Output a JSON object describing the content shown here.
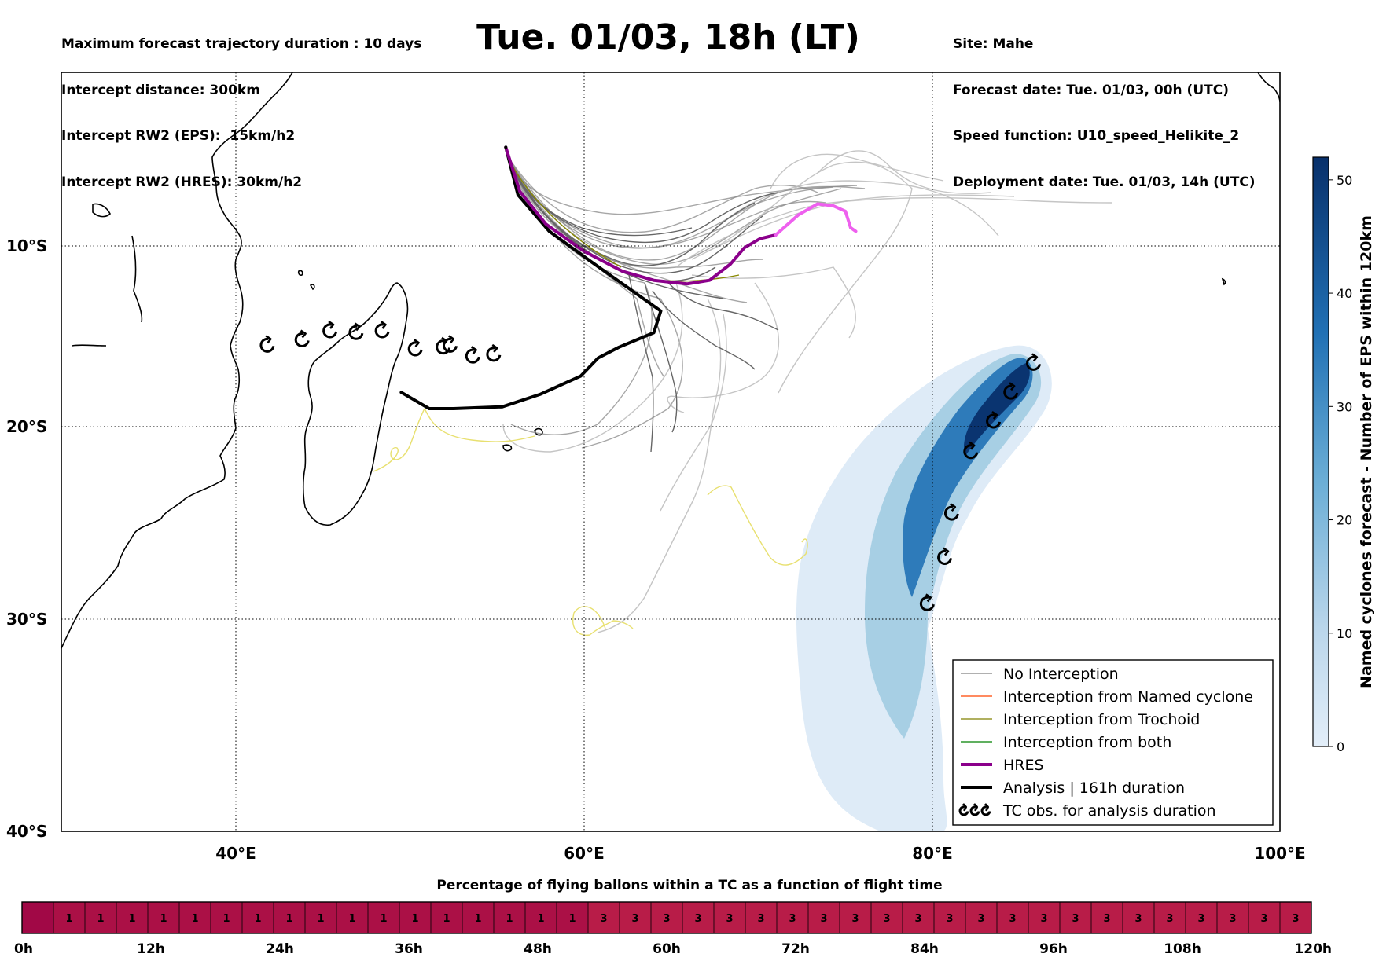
{
  "header": {
    "left_lines": [
      "Maximum forecast trajectory duration : 10 days",
      "Intercept distance: 300km",
      "Intercept RW2 (EPS):  15km/h2",
      "Intercept RW2 (HRES): 30km/h2"
    ],
    "title": "Tue. 01/03, 18h (LT)",
    "right_lines": [
      "Site: Mahe",
      "Forecast date: Tue. 01/03, 00h (UTC)",
      "Speed function: U10_speed_Helikite_2",
      "Deployment date: Tue. 01/03, 14h (UTC)"
    ]
  },
  "map": {
    "lat_labels": [
      "10°S",
      "20°S",
      "30°S",
      "40°S"
    ],
    "lon_labels": [
      "40°E",
      "60°E",
      "80°E",
      "100°E"
    ],
    "lon_range": [
      30,
      100
    ],
    "lat_range": [
      -40,
      -0.5
    ],
    "site": {
      "name": "Mahe",
      "lon": 55.5,
      "lat": -4.6
    },
    "grid": true
  },
  "legend": {
    "items": [
      {
        "label": "No Interception",
        "color": "#808080"
      },
      {
        "label": "Interception from Named cyclone",
        "color": "#ff4500"
      },
      {
        "label": "Interception from Trochoid",
        "color": "#808000"
      },
      {
        "label": "Interception from both",
        "color": "#008000"
      },
      {
        "label": "HRES",
        "color": "#8b008b"
      },
      {
        "label": "Analysis | 161h duration",
        "color": "#000000"
      },
      {
        "label": "TC obs. for analysis duration",
        "color": "#000000",
        "icon": "cyclone-icon"
      }
    ]
  },
  "colorbar": {
    "label": "Named cyclones forecast - Number of EPS within 120km",
    "ticks": [
      "0",
      "10",
      "20",
      "30",
      "40",
      "50"
    ],
    "tick_values": [
      0,
      10,
      20,
      30,
      40,
      50
    ],
    "max": 52,
    "color_low": "#e3eef9",
    "color_high": "#08306b"
  },
  "percentage_bar": {
    "title": "Percentage of flying ballons within a TC as a function of flight time",
    "cells": [
      "",
      "1",
      "1",
      "1",
      "1",
      "1",
      "1",
      "1",
      "1",
      "1",
      "1",
      "1",
      "1",
      "1",
      "1",
      "1",
      "1",
      "1",
      "3",
      "3",
      "3",
      "3",
      "3",
      "3",
      "3",
      "3",
      "3",
      "3",
      "3",
      "3",
      "3",
      "3",
      "3",
      "3",
      "3",
      "3",
      "3",
      "3",
      "3",
      "3",
      "3"
    ],
    "time_labels": [
      "0h",
      "12h",
      "24h",
      "36h",
      "48h",
      "60h",
      "72h",
      "84h",
      "96h",
      "108h",
      "120h"
    ],
    "color_zero": "#a10846",
    "color_one": "#ab1046",
    "color_three": "#b81c48"
  },
  "tc_observations": [
    {
      "lon": 41.8,
      "lat": -15.5
    },
    {
      "lon": 43.8,
      "lat": -15.2
    },
    {
      "lon": 45.4,
      "lat": -14.7
    },
    {
      "lon": 46.9,
      "lat": -14.8
    },
    {
      "lon": 48.4,
      "lat": -14.7
    },
    {
      "lon": 50.3,
      "lat": -15.7
    },
    {
      "lon": 51.9,
      "lat": -15.6
    },
    {
      "lon": 52.3,
      "lat": -15.5
    },
    {
      "lon": 53.6,
      "lat": -16.1
    },
    {
      "lon": 54.8,
      "lat": -16.0
    },
    {
      "lon": 85.8,
      "lat": -16.5
    },
    {
      "lon": 84.5,
      "lat": -18.1
    },
    {
      "lon": 83.5,
      "lat": -19.7
    },
    {
      "lon": 82.2,
      "lat": -21.3
    },
    {
      "lon": 81.1,
      "lat": -24.5
    },
    {
      "lon": 80.7,
      "lat": -26.8
    },
    {
      "lon": 79.7,
      "lat": -29.2
    }
  ],
  "analysis_track": [
    [
      55.5,
      -4.6
    ],
    [
      56.2,
      -7.2
    ],
    [
      58.0,
      -9.2
    ],
    [
      60.3,
      -10.8
    ],
    [
      62.5,
      -12.3
    ],
    [
      64.4,
      -13.6
    ],
    [
      64.0,
      -14.8
    ],
    [
      62.0,
      -15.6
    ],
    [
      60.8,
      -16.2
    ],
    [
      59.8,
      -17.2
    ],
    [
      57.5,
      -18.2
    ],
    [
      55.3,
      -18.9
    ],
    [
      52.5,
      -19.0
    ],
    [
      51.1,
      -19.0
    ],
    [
      49.5,
      -18.1
    ]
  ],
  "hres_track": [
    [
      55.5,
      -4.6
    ],
    [
      56.3,
      -7.0
    ],
    [
      57.8,
      -8.8
    ],
    [
      60.0,
      -10.3
    ],
    [
      62.2,
      -11.4
    ],
    [
      64.0,
      -11.9
    ],
    [
      65.9,
      -12.1
    ],
    [
      67.2,
      -11.9
    ],
    [
      68.4,
      -11.0
    ],
    [
      69.2,
      -10.1
    ],
    [
      70.1,
      -9.6
    ],
    [
      71.0,
      -9.4
    ]
  ],
  "hres_track_late": [
    [
      71.0,
      -9.4
    ],
    [
      72.3,
      -8.3
    ],
    [
      73.4,
      -7.7
    ],
    [
      74.3,
      -7.8
    ],
    [
      75.0,
      -8.1
    ],
    [
      75.3,
      -9.0
    ],
    [
      75.6,
      -9.2
    ]
  ]
}
